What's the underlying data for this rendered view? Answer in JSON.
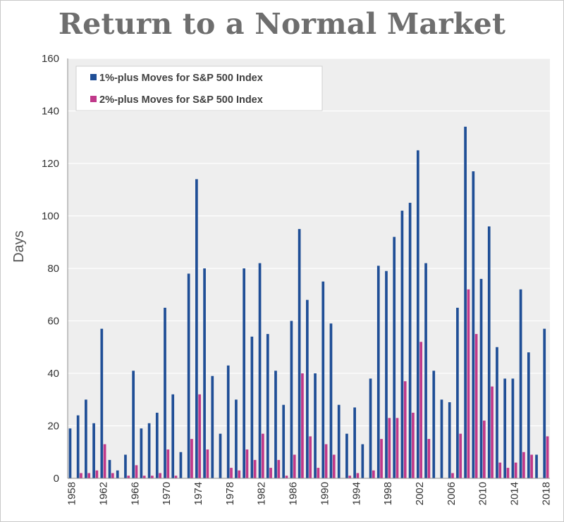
{
  "chart_data": {
    "type": "bar",
    "title": "Return to a Normal Market",
    "ylabel": "Days",
    "xlabel": "",
    "ylim": [
      0,
      160
    ],
    "yticks": [
      0,
      20,
      40,
      60,
      80,
      100,
      120,
      140,
      160
    ],
    "grid": true,
    "legend_position": "top-left",
    "x_tick_labels": [
      "1958",
      "1962",
      "1966",
      "1970",
      "1974",
      "1978",
      "1982",
      "1986",
      "1990",
      "1994",
      "1998",
      "2002",
      "2006",
      "2010",
      "2014",
      "2018"
    ],
    "categories": [
      1958,
      1959,
      1960,
      1961,
      1962,
      1963,
      1964,
      1965,
      1966,
      1967,
      1968,
      1969,
      1970,
      1971,
      1972,
      1973,
      1974,
      1975,
      1976,
      1977,
      1978,
      1979,
      1980,
      1981,
      1982,
      1983,
      1984,
      1985,
      1986,
      1987,
      1988,
      1989,
      1990,
      1991,
      1992,
      1993,
      1994,
      1995,
      1996,
      1997,
      1998,
      1999,
      2000,
      2001,
      2002,
      2003,
      2004,
      2005,
      2006,
      2007,
      2008,
      2009,
      2010,
      2011,
      2012,
      2013,
      2014,
      2015,
      2016,
      2017,
      2018
    ],
    "series": [
      {
        "name": "1%-plus Moves for S&P 500 Index",
        "color": "#1f4e96",
        "values": [
          19,
          24,
          30,
          21,
          57,
          7,
          3,
          9,
          41,
          19,
          21,
          25,
          65,
          32,
          10,
          78,
          114,
          80,
          39,
          17,
          43,
          30,
          80,
          54,
          82,
          55,
          41,
          28,
          60,
          95,
          68,
          40,
          75,
          59,
          28,
          17,
          27,
          13,
          38,
          81,
          79,
          92,
          102,
          105,
          125,
          82,
          41,
          30,
          29,
          65,
          134,
          117,
          76,
          96,
          50,
          38,
          38,
          72,
          48,
          9,
          57
        ]
      },
      {
        "name": "2%-plus Moves for S&P 500 Index",
        "color": "#c0398a",
        "values": [
          0,
          2,
          2,
          3,
          13,
          2,
          0,
          1,
          5,
          1,
          1,
          2,
          11,
          1,
          0,
          15,
          32,
          11,
          0,
          0,
          4,
          3,
          11,
          7,
          17,
          4,
          7,
          1,
          9,
          40,
          16,
          4,
          13,
          9,
          0,
          1,
          2,
          0,
          3,
          15,
          23,
          23,
          37,
          25,
          52,
          15,
          0,
          0,
          2,
          17,
          72,
          55,
          22,
          35,
          6,
          4,
          6,
          10,
          9,
          0,
          16
        ]
      }
    ]
  },
  "colors": {
    "plot_background": "#eeeeee",
    "gridline": "#ffffff",
    "title": "#6e6e6e"
  }
}
